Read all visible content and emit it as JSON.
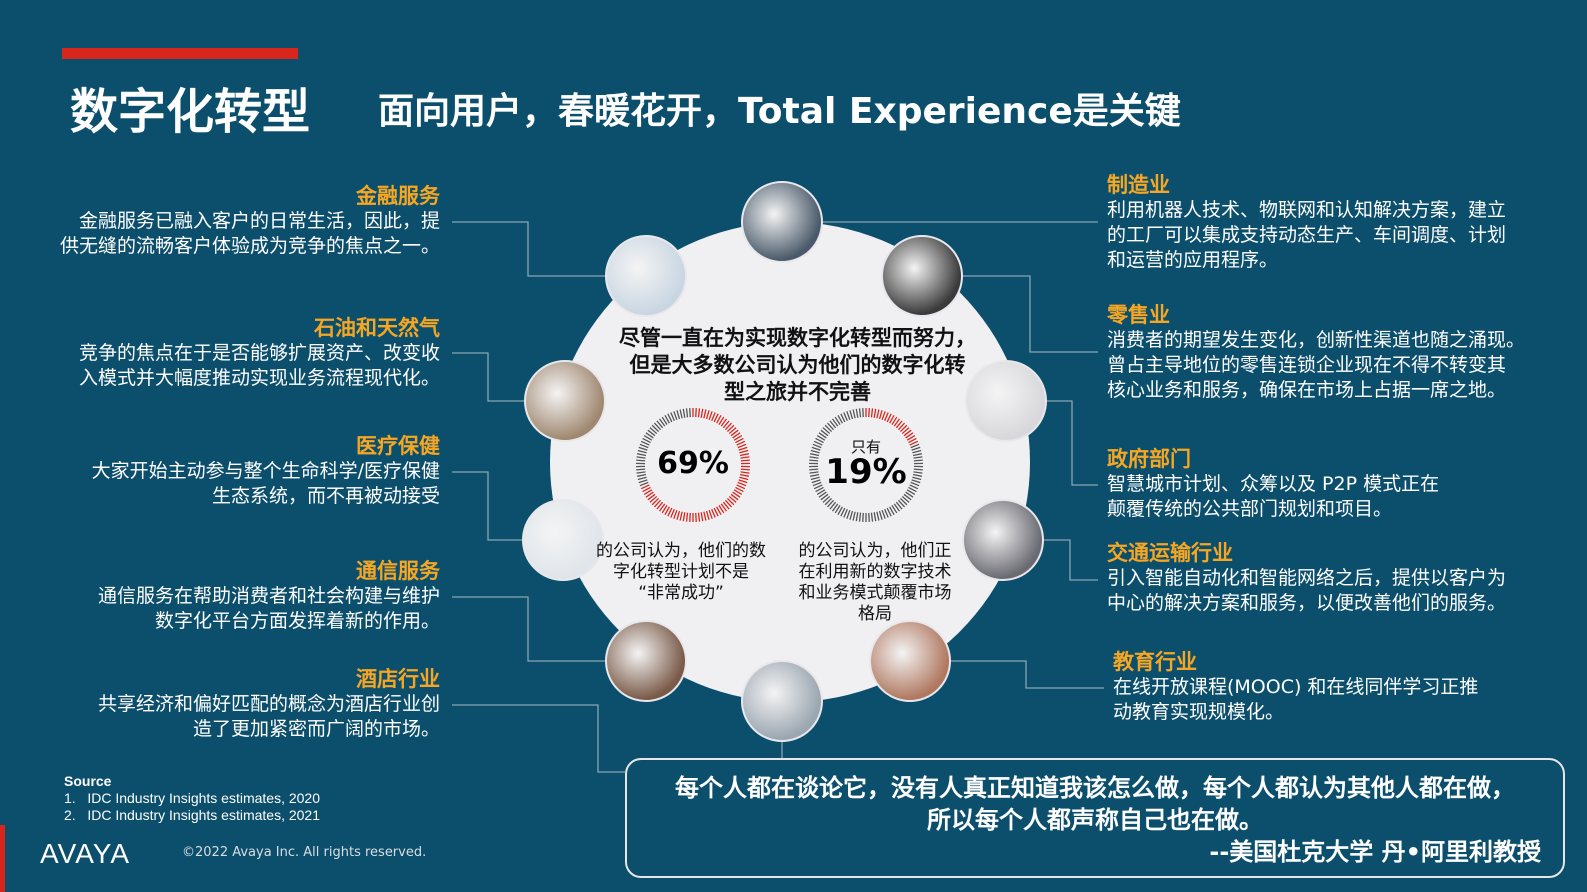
{
  "title": "数字化转型",
  "subtitle": "面向用户，春暖花开，Total Experience是关键",
  "left_items": [
    {
      "title": "金融服务",
      "lines": [
        "金融服务已融入客户的日常生活，因此，提",
        "供无缝的流畅客户体验成为竞争的焦点之一。"
      ]
    },
    {
      "title": "石油和天然气",
      "lines": [
        "竞争的焦点在于是否能够扩展资产、改变收",
        "入模式并大幅度推动实现业务流程现代化。"
      ]
    },
    {
      "title": "医疗保健",
      "lines": [
        "大家开始主动参与整个生命科学/医疗保健",
        "生态系统，而不再被动接受"
      ]
    },
    {
      "title": "通信服务",
      "lines": [
        "通信服务在帮助消费者和社会构建与维护",
        "数字化平台方面发挥着新的作用。"
      ]
    },
    {
      "title": "酒店行业",
      "lines": [
        "共享经济和偏好匹配的概念为酒店行业创",
        "造了更加紧密而广阔的市场。"
      ]
    }
  ],
  "right_items": [
    {
      "title": "制造业",
      "lines": [
        "利用机器人技术、物联网和认知解决方案，建立",
        "的工厂可以集成支持动态生产、车间调度、计划",
        "和运营的应用程序。"
      ]
    },
    {
      "title": "零售业",
      "lines": [
        "消费者的期望发生变化，创新性渠道也随之涌现。",
        "曾占主导地位的零售连锁企业现在不得不转变其",
        "核心业务和服务，确保在市场上占据一席之地。"
      ]
    },
    {
      "title": "政府部门",
      "lines": [
        "智慧城市计划、众筹以及 P2P 模式正在",
        "颠覆传统的公共部门规划和项目。"
      ]
    },
    {
      "title": "交通运输行业",
      "lines": [
        "引入智能自动化和智能网络之后，提供以客户为",
        "中心的解决方案和服务，以便改善他们的服务。"
      ]
    },
    {
      "title": "教育行业",
      "lines": [
        "在线开放课程(MOOC) 和在线同伴学习正推",
        "动教育实现规模化。"
      ]
    }
  ],
  "center": {
    "heading": [
      "尽管一直在为实现数字化转型而努力，",
      "但是大多数公司认为他们的数字化转",
      "型之旅并不完善"
    ],
    "stat1": {
      "value": "69%",
      "percent": 69,
      "desc": [
        "的公司认为，他们的数",
        "字化转型计划不是",
        "“非常成功”"
      ]
    },
    "stat2": {
      "prefix": "只有",
      "value": "19%",
      "percent": 19,
      "desc": [
        "的公司认为，他们正",
        "在利用新的数字技术",
        "和业务模式颠覆市场",
        "格局"
      ]
    }
  },
  "quote": {
    "lines": [
      "每个人都在谈论它，没有人真正知道我该怎么做，每个人都认为其他人都在做，",
      "所以每个人都声称自己也在做。"
    ],
    "author": "--美国杜克大学 丹•阿里利教授"
  },
  "source": {
    "label": "Source",
    "items": [
      "1.   IDC Industry Insights estimates, 2020",
      "2.   IDC Industry Insights estimates, 2021"
    ]
  },
  "logo": "AVAYA",
  "copyright": "©2022 Avaya Inc. All rights reserved.",
  "colors": {
    "background": "#0c4f6d",
    "accent": "#f5a623",
    "red": "#d9261c",
    "ring_gray": "#555555"
  }
}
